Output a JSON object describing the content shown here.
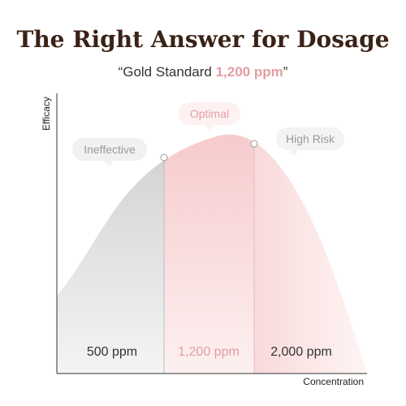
{
  "header": {
    "title": "The Right Answer for Dosage",
    "subtitle": [
      "“Gold Standard",
      "1,200 ppm",
      "”"
    ]
  },
  "axes": {
    "y_label": "Efficacy",
    "x_label": "Concentration"
  },
  "zones": [
    {
      "callout": "Ineffective",
      "label": "500 ppm"
    },
    {
      "callout": "Optimal",
      "label": "1,200 ppm"
    },
    {
      "callout": "High Risk",
      "label": "2,000 ppm"
    }
  ]
}
